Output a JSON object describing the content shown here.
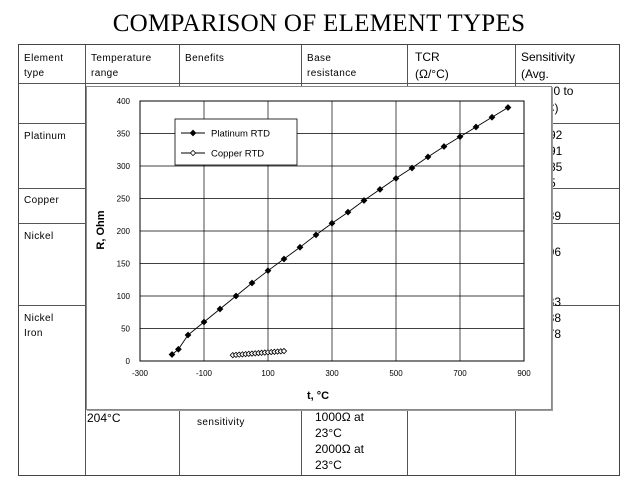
{
  "page": {
    "title": "COMPARISON OF ELEMENT TYPES"
  },
  "table": {
    "headers": {
      "element_type": [
        "Element",
        "type"
      ],
      "temperature_range": [
        "Temperature",
        "range"
      ],
      "benefits": "Benefits",
      "base_resistance": [
        "Base",
        "resistance"
      ],
      "tcr": [
        "TCR",
        "(Ω/°C)"
      ],
      "sensitivity": [
        "Sensitivity",
        "(Avg.",
        "Ω/°C, 0 to",
        "100°C)"
      ]
    },
    "rows": {
      "platinum": {
        "type": "Platinum",
        "sensitivity": [
          ".392",
          ".391",
          ".385",
          ".85"
        ]
      },
      "copper": {
        "type": "Copper",
        "sensitivity": [
          "039"
        ]
      },
      "nickel": {
        "type": "Nickel",
        "sensitivity": [
          "806"
        ]
      },
      "nickel_iron": {
        "type": [
          "Nickel",
          "Iron"
        ],
        "sensitivity": [
          "133",
          "788",
          "578"
        ]
      }
    },
    "footer": {
      "temperature": "204°C",
      "benefits": "sensitivity",
      "resistance": [
        "1000Ω at",
        "23°C",
        "2000Ω at",
        "23°C"
      ]
    }
  },
  "chart_data": {
    "type": "line",
    "xlabel": "t,  °C",
    "ylabel": "R, Ohm",
    "xlim": [
      -300,
      900
    ],
    "ylim": [
      0,
      400
    ],
    "xticks": [
      -300,
      -100,
      100,
      300,
      500,
      700,
      900
    ],
    "yticks": [
      0,
      50,
      100,
      150,
      200,
      250,
      300,
      350,
      400
    ],
    "grid": true,
    "legend_position": "top-left",
    "series": [
      {
        "name": "Platinum RTD",
        "marker": "filled-diamond",
        "color": "#000000",
        "x": [
          -200,
          -180,
          -150,
          -100,
          -50,
          0,
          50,
          100,
          150,
          200,
          250,
          300,
          350,
          400,
          450,
          500,
          550,
          600,
          650,
          700,
          750,
          800,
          850
        ],
        "y": [
          10,
          18,
          40,
          60,
          80,
          100,
          120,
          139,
          157,
          175,
          194,
          212,
          229,
          247,
          264,
          281,
          297,
          314,
          330,
          345,
          360,
          375,
          390
        ]
      },
      {
        "name": "Copper RTD",
        "marker": "open-diamond",
        "color": "#000000",
        "x": [
          -10,
          0,
          10,
          20,
          30,
          40,
          50,
          60,
          70,
          80,
          90,
          100,
          110,
          120,
          130,
          140,
          150
        ],
        "y": [
          9.0,
          9.4,
          9.8,
          10.2,
          10.6,
          11.0,
          11.4,
          11.8,
          12.2,
          12.6,
          13.0,
          13.3,
          13.7,
          14.1,
          14.5,
          14.9,
          15.3
        ]
      }
    ]
  }
}
